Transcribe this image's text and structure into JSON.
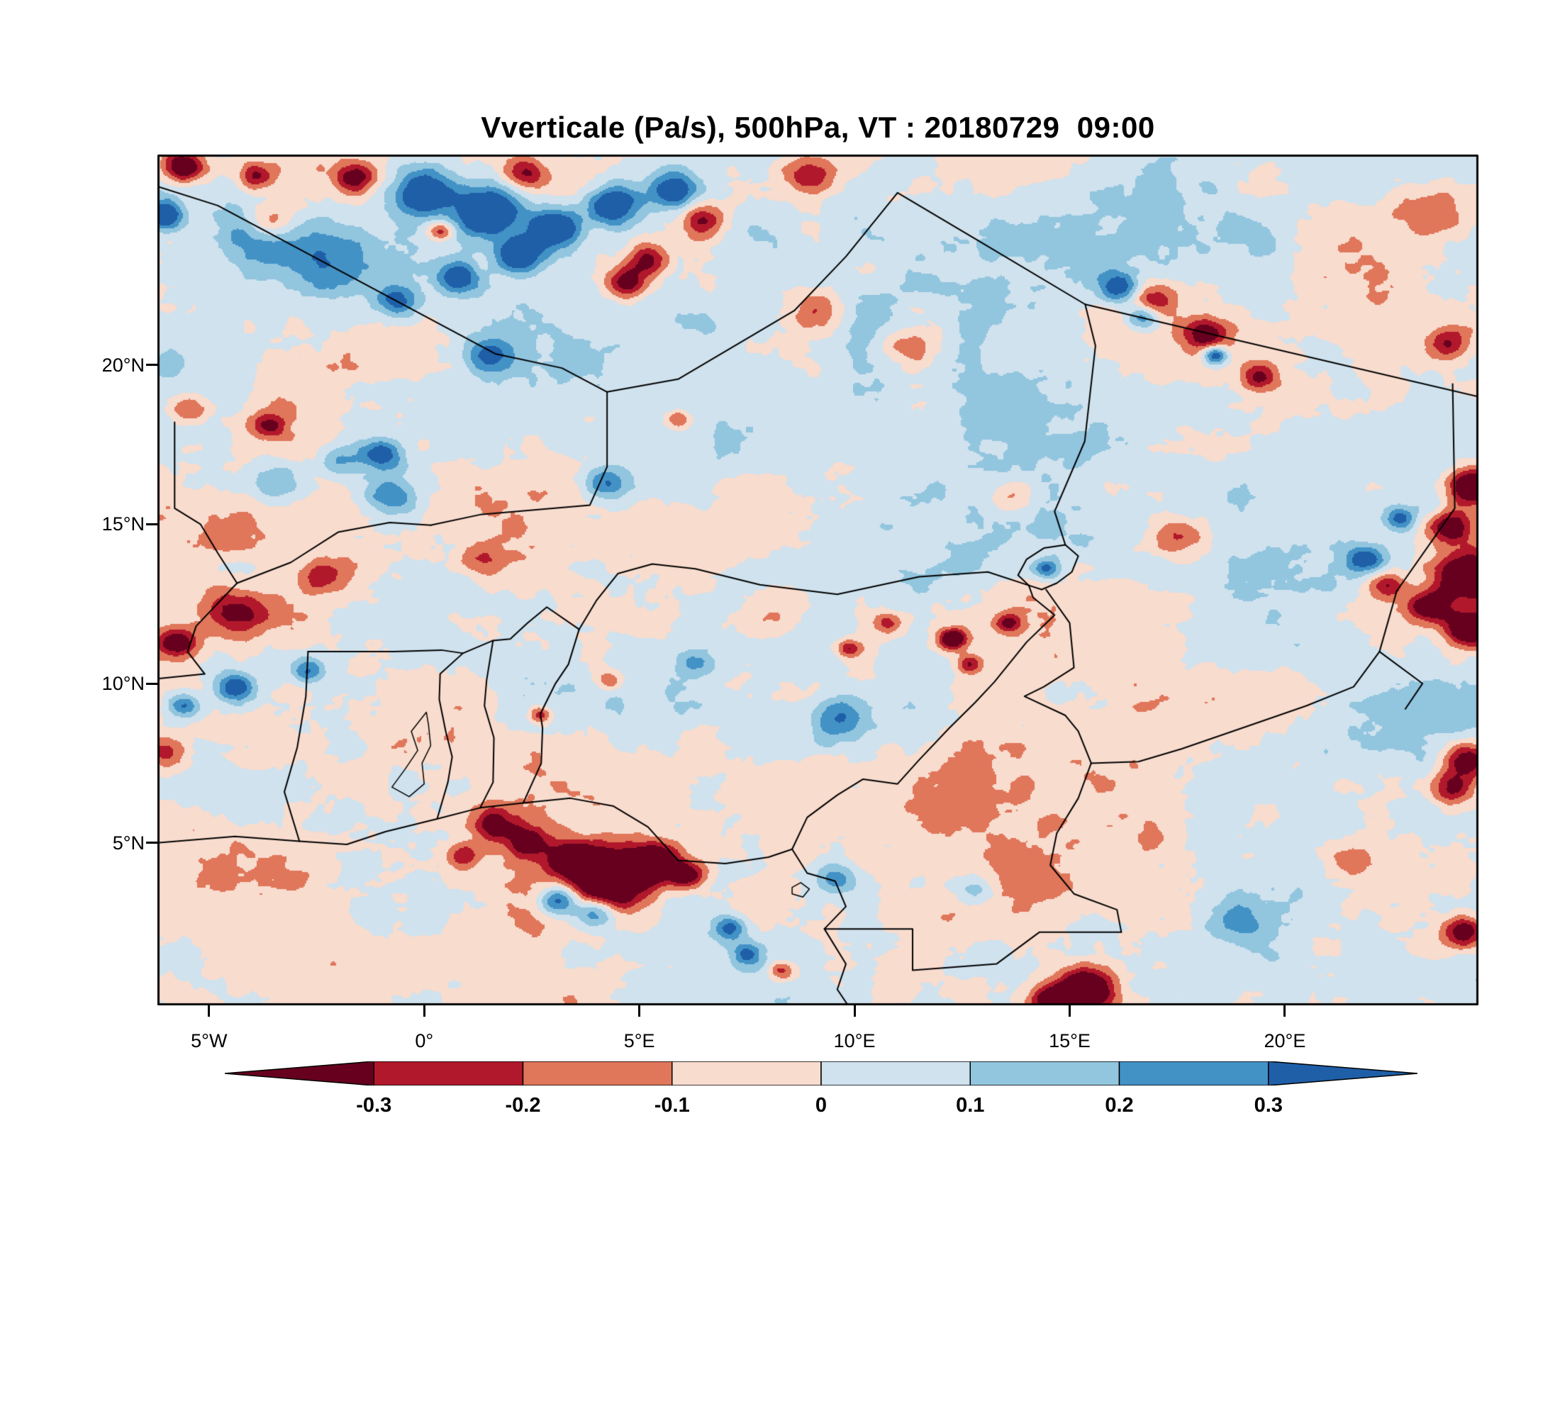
{
  "title": "Vverticale (Pa/s), 500hPa, VT : 20180729  09:00",
  "map": {
    "lat_tick_labels": [
      {
        "deg": 5,
        "label": "5°N"
      },
      {
        "deg": 10,
        "label": "10°N"
      },
      {
        "deg": 15,
        "label": "15°N"
      },
      {
        "deg": 20,
        "label": "20°N"
      }
    ],
    "lon_tick_labels": [
      {
        "deg": -5,
        "label": "5°W"
      },
      {
        "deg": 0,
        "label": "0°"
      },
      {
        "deg": 5,
        "label": "5°E"
      },
      {
        "deg": 10,
        "label": "10°E"
      },
      {
        "deg": 15,
        "label": "15°E"
      },
      {
        "deg": 20,
        "label": "20°E"
      }
    ]
  },
  "colorbar": {
    "labels": [
      "-0.3",
      "-0.2",
      "-0.1",
      "0",
      "0.1",
      "0.2",
      "0.3"
    ],
    "levels": [
      -0.3,
      -0.2,
      -0.1,
      0,
      0.1,
      0.2,
      0.3
    ],
    "colors": [
      "#67001f",
      "#b2182b",
      "#e0765a",
      "#f8dcce",
      "#cfe2ee",
      "#92c5de",
      "#4292c6",
      "#1f5fa8"
    ]
  },
  "chart_data": {
    "type": "heatmap",
    "title": "Vverticale (Pa/s), 500hPa, VT : 20180729  09:00",
    "variable": "Vverticale",
    "units": "Pa/s",
    "pressure_level": "500hPa",
    "valid_time": "20180729 09:00",
    "lon_range": [
      -6.2,
      24.5
    ],
    "lat_range": [
      -0.1,
      26.6
    ],
    "lon_ticks_deg": [
      -5,
      0,
      5,
      10,
      15,
      20
    ],
    "lat_ticks_deg": [
      5,
      10,
      15,
      20
    ],
    "contour_levels": [
      -0.3,
      -0.2,
      -0.1,
      0,
      0.1,
      0.2,
      0.3
    ],
    "palette": [
      "#67001f",
      "#b2182b",
      "#e0765a",
      "#f8dcce",
      "#cfe2ee",
      "#92c5de",
      "#4292c6",
      "#1f5fa8"
    ],
    "background_range": [
      -0.12,
      0.12
    ],
    "legend_position": "bottom",
    "grid": false,
    "feature_format": [
      "lon_deg",
      "lat_deg",
      "peak_value_pa_s",
      "radius_deg"
    ],
    "features": [
      [
        -5.6,
        26.2,
        -0.5,
        0.5
      ],
      [
        -3.9,
        25.9,
        -0.3,
        0.4
      ],
      [
        -1.6,
        25.9,
        -0.38,
        0.5
      ],
      [
        2.4,
        26.0,
        -0.3,
        0.45
      ],
      [
        9.0,
        25.9,
        -0.33,
        0.6
      ],
      [
        23.6,
        24.9,
        -0.22,
        0.8
      ],
      [
        -3.6,
        24.5,
        -0.3,
        0.55
      ],
      [
        0.4,
        24.2,
        -0.3,
        0.3
      ],
      [
        4.7,
        22.6,
        -0.42,
        0.5
      ],
      [
        5.2,
        23.3,
        -0.3,
        0.45
      ],
      [
        6.5,
        24.5,
        -0.28,
        0.5
      ],
      [
        9.2,
        21.7,
        -0.2,
        0.6
      ],
      [
        11.3,
        20.6,
        -0.22,
        0.7
      ],
      [
        16.9,
        22.0,
        -0.33,
        0.6
      ],
      [
        18.2,
        21.0,
        -0.36,
        0.5
      ],
      [
        19.4,
        19.6,
        -0.3,
        0.4
      ],
      [
        23.8,
        20.7,
        -0.3,
        0.5
      ],
      [
        -5.5,
        18.6,
        -0.3,
        0.5
      ],
      [
        -3.6,
        18.1,
        -0.25,
        0.4
      ],
      [
        5.9,
        18.3,
        -0.28,
        0.3
      ],
      [
        13.7,
        15.9,
        -0.2,
        0.5
      ],
      [
        17.5,
        14.6,
        -0.25,
        0.6
      ],
      [
        24.3,
        16.2,
        -0.55,
        0.55
      ],
      [
        23.9,
        14.9,
        -0.4,
        0.5
      ],
      [
        24.3,
        13.4,
        -0.55,
        0.7
      ],
      [
        23.4,
        12.4,
        -0.45,
        0.5
      ],
      [
        24.3,
        11.7,
        -0.5,
        0.5
      ],
      [
        22.4,
        13.1,
        -0.3,
        0.4
      ],
      [
        -4.4,
        12.2,
        -0.33,
        0.8
      ],
      [
        -5.8,
        11.3,
        -0.4,
        0.5
      ],
      [
        -2.4,
        13.3,
        -0.25,
        0.5
      ],
      [
        1.3,
        13.9,
        -0.22,
        0.6
      ],
      [
        8.3,
        12.4,
        -0.2,
        0.9
      ],
      [
        10.8,
        11.9,
        -0.3,
        0.35
      ],
      [
        9.9,
        11.1,
        -0.3,
        0.28
      ],
      [
        12.3,
        11.4,
        -0.5,
        0.33
      ],
      [
        12.7,
        10.6,
        -0.35,
        0.3
      ],
      [
        13.6,
        11.9,
        -0.3,
        0.3
      ],
      [
        2.7,
        9.0,
        -0.3,
        0.25
      ],
      [
        4.3,
        10.1,
        -0.25,
        0.3
      ],
      [
        -6.0,
        7.8,
        -0.25,
        0.5
      ],
      [
        1.6,
        5.6,
        -0.3,
        0.5
      ],
      [
        2.4,
        5.0,
        -0.33,
        0.45
      ],
      [
        0.9,
        4.6,
        -0.25,
        0.4
      ],
      [
        4.3,
        3.9,
        -0.65,
        0.95
      ],
      [
        5.4,
        4.4,
        -0.5,
        0.55
      ],
      [
        3.4,
        4.5,
        -0.4,
        0.5
      ],
      [
        6.1,
        4.0,
        -0.4,
        0.4
      ],
      [
        8.3,
        1.0,
        -0.3,
        0.3
      ],
      [
        15.4,
        0.4,
        -0.6,
        0.7
      ],
      [
        14.5,
        0.1,
        -0.4,
        0.5
      ],
      [
        21.5,
        4.5,
        -0.2,
        0.6
      ],
      [
        24.3,
        7.6,
        -0.5,
        0.6
      ],
      [
        23.9,
        6.7,
        -0.4,
        0.5
      ],
      [
        24.2,
        2.2,
        -0.45,
        0.5
      ],
      [
        -6.05,
        24.7,
        0.5,
        0.45
      ],
      [
        -4.2,
        24.2,
        0.3,
        0.8
      ],
      [
        -2.5,
        23.4,
        0.25,
        1.2
      ],
      [
        0.0,
        25.4,
        0.5,
        0.65
      ],
      [
        1.5,
        24.8,
        0.58,
        0.75
      ],
      [
        3.0,
        24.3,
        0.5,
        0.65
      ],
      [
        4.4,
        25.0,
        0.5,
        0.6
      ],
      [
        5.8,
        25.5,
        0.42,
        0.55
      ],
      [
        2.2,
        23.4,
        0.5,
        0.55
      ],
      [
        0.8,
        22.7,
        0.4,
        0.5
      ],
      [
        -0.6,
        22.0,
        0.35,
        0.5
      ],
      [
        1.5,
        20.3,
        0.3,
        0.6
      ],
      [
        19.0,
        24.0,
        0.18,
        1.5
      ],
      [
        16.2,
        22.4,
        0.42,
        0.5
      ],
      [
        16.7,
        21.5,
        0.4,
        0.4
      ],
      [
        18.4,
        20.3,
        0.5,
        0.3
      ],
      [
        21.9,
        13.9,
        0.38,
        0.4
      ],
      [
        22.7,
        15.2,
        0.3,
        0.35
      ],
      [
        -1.0,
        17.2,
        0.4,
        0.5
      ],
      [
        -0.8,
        15.9,
        0.3,
        0.6
      ],
      [
        -3.4,
        16.3,
        0.28,
        0.7
      ],
      [
        -2.0,
        17.0,
        0.25,
        0.5
      ],
      [
        4.2,
        16.3,
        0.3,
        0.5
      ],
      [
        -4.4,
        9.9,
        0.38,
        0.45
      ],
      [
        -2.7,
        10.4,
        0.3,
        0.4
      ],
      [
        -5.6,
        9.3,
        0.32,
        0.4
      ],
      [
        9.6,
        8.9,
        0.28,
        0.7
      ],
      [
        6.3,
        10.7,
        0.2,
        0.4
      ],
      [
        14.5,
        13.6,
        0.3,
        0.3
      ],
      [
        3.1,
        3.2,
        0.45,
        0.5
      ],
      [
        4.0,
        2.8,
        0.35,
        0.45
      ],
      [
        7.1,
        2.3,
        0.32,
        0.4
      ],
      [
        7.5,
        1.5,
        0.3,
        0.35
      ],
      [
        12.8,
        3.5,
        0.25,
        0.5
      ],
      [
        9.6,
        3.9,
        0.25,
        0.5
      ],
      [
        19.0,
        2.5,
        0.2,
        0.6
      ]
    ]
  }
}
